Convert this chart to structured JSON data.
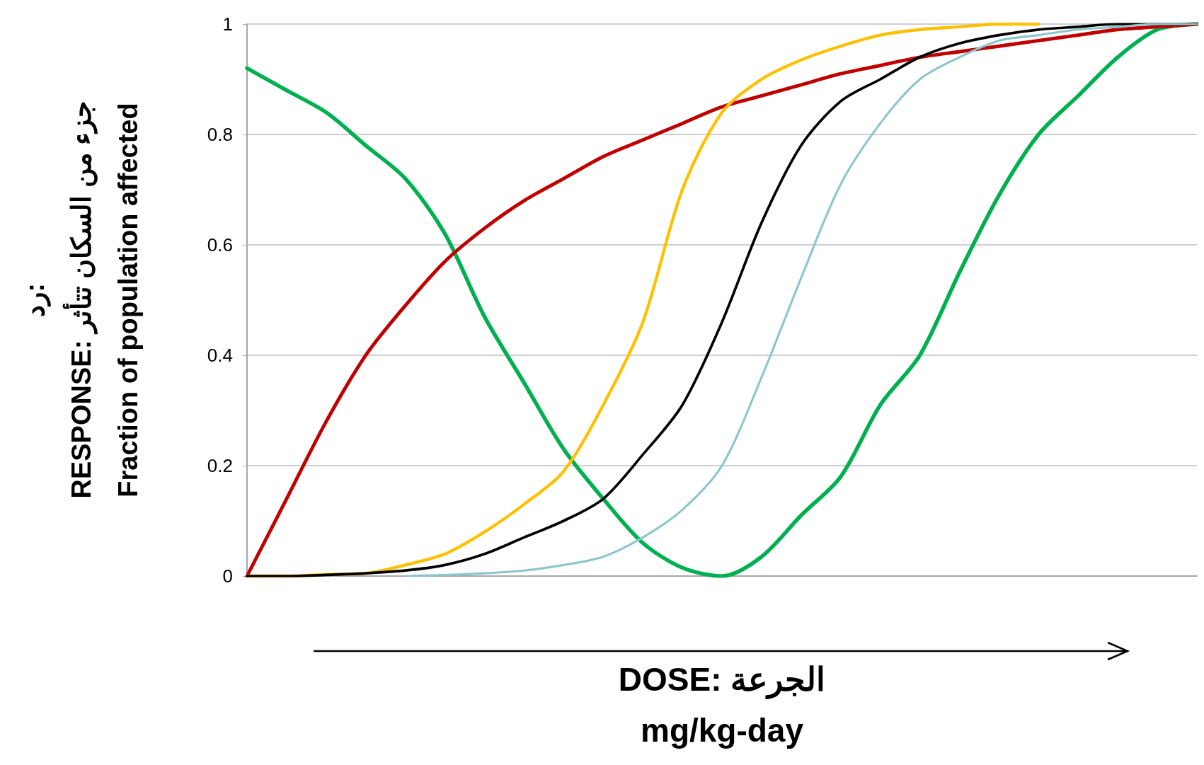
{
  "chart_data": {
    "type": "line",
    "xlabel": "DOSE: الجرعة\nmg/kg-day",
    "ylabel": "رد:\nRESPONSE: جزء من السكان تتأثر\nFraction of population affected",
    "categories": [
      null,
      null,
      null,
      null,
      null,
      null,
      null,
      null,
      null,
      null,
      null,
      null,
      null,
      null,
      null,
      null,
      null,
      null,
      null,
      null,
      null,
      null,
      null,
      null,
      null
    ],
    "series": [
      {
        "color": "#00b050",
        "values": [
          0.92,
          0.88,
          0.84,
          0.78,
          0.72,
          0.62,
          0.47,
          0.35,
          0.23,
          0.14,
          0.06,
          0.015,
          0,
          0.035,
          0.11,
          0.18,
          0.31,
          0.4,
          0.55,
          0.69,
          0.8,
          0.87,
          0.94,
          0.99,
          1
        ]
      },
      {
        "color": "#c00000",
        "values": [
          0,
          0.14,
          0.28,
          0.4,
          0.49,
          0.57,
          0.63,
          0.68,
          0.72,
          0.76,
          0.79,
          0.82,
          0.85,
          0.87,
          0.89,
          0.91,
          0.925,
          0.94,
          0.95,
          0.96,
          0.97,
          0.98,
          0.99,
          0.995,
          1
        ]
      },
      {
        "color": "#ffc000",
        "values": [
          0,
          0,
          0.003,
          0.005,
          0.02,
          0.04,
          0.08,
          0.13,
          0.19,
          0.31,
          0.46,
          0.7,
          0.84,
          0.9,
          0.935,
          0.96,
          0.98,
          0.99,
          0.995,
          1,
          1,
          null,
          null,
          null,
          null
        ]
      },
      {
        "color": "#000000",
        "values": [
          0,
          0,
          0.002,
          0.005,
          0.01,
          0.02,
          0.04,
          0.07,
          0.1,
          0.14,
          0.22,
          0.31,
          0.46,
          0.64,
          0.78,
          0.86,
          0.9,
          0.94,
          0.965,
          0.98,
          0.99,
          0.995,
          1,
          1,
          1
        ]
      },
      {
        "color": "#8cc6cc",
        "values": [
          null,
          null,
          null,
          null,
          0,
          0.002,
          0.005,
          0.01,
          0.02,
          0.035,
          0.07,
          0.12,
          0.2,
          0.36,
          0.54,
          0.71,
          0.82,
          0.9,
          0.94,
          0.97,
          0.98,
          0.99,
          0.995,
          1,
          1
        ]
      }
    ],
    "ylim": [
      0,
      1
    ],
    "yticks": [
      0,
      0.2,
      0.4,
      0.6,
      0.8,
      1
    ],
    "grid": "y",
    "tick_labels": "y",
    "marker": "none",
    "line_style": "solid"
  }
}
